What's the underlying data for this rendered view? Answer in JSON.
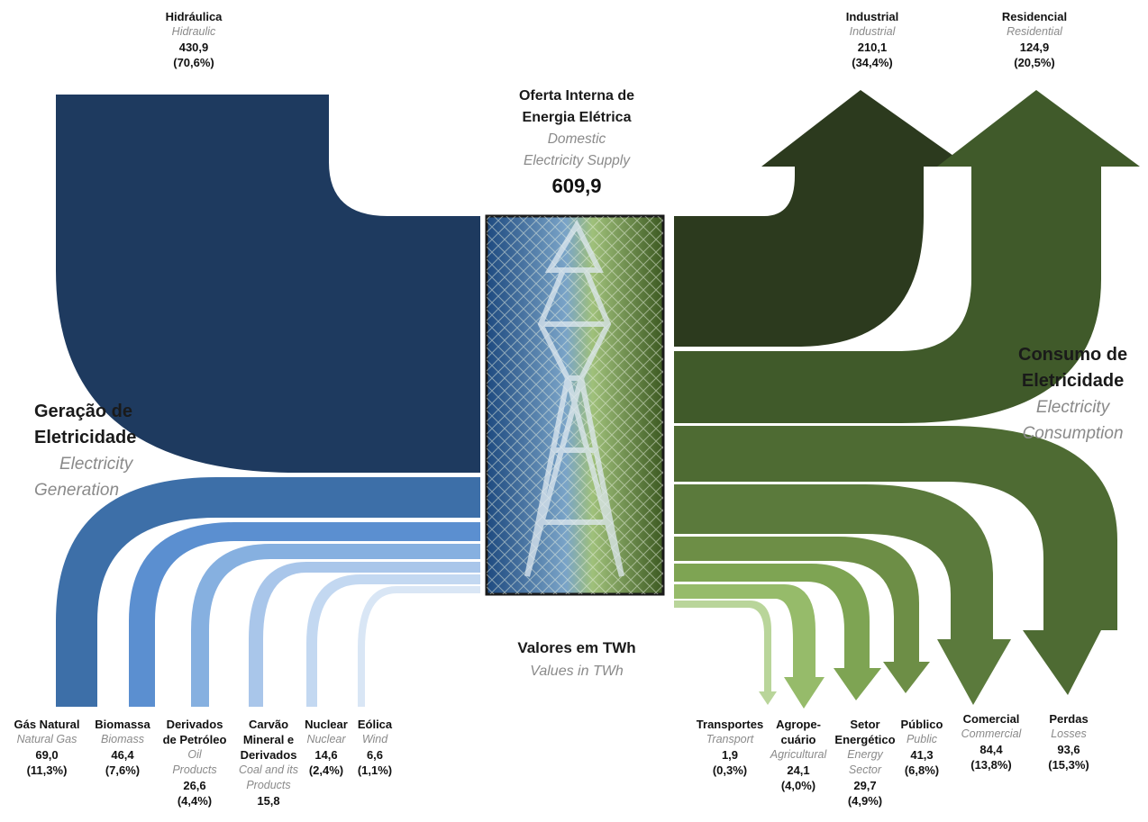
{
  "center": {
    "title_pt_1": "Oferta Interna de",
    "title_pt_2": "Energia Elétrica",
    "title_en_1": "Domestic",
    "title_en_2": "Electricity Supply",
    "total": "609,9"
  },
  "generation_heading": {
    "pt_1": "Geração de",
    "pt_2": "Eletricidade",
    "en_1": "Electricity",
    "en_2": "Generation"
  },
  "consumption_heading": {
    "pt_1": "Consumo de",
    "pt_2": "Eletricidade",
    "en_1": "Electricity",
    "en_2": "Consumption"
  },
  "units": {
    "pt": "Valores em TWh",
    "en": "Values in TWh"
  },
  "colors": {
    "hydro": "#1e3a5f",
    "gas": "#3d6fa8",
    "biomass": "#5b8fd0",
    "oil": "#86b0e0",
    "coal": "#a9c6ea",
    "nuclear": "#c3d8f1",
    "wind": "#d9e6f5",
    "industrial": "#2c3a1e",
    "residential": "#405a2a",
    "losses": "#4e6b33",
    "commercial": "#5b7a3c",
    "public": "#6d8e46",
    "energy_sector": "#7ea453",
    "agricultural": "#96bb6a",
    "transport": "#b9d59a"
  },
  "chart_data": {
    "type": "sankey",
    "unit": "TWh",
    "center_node": "Oferta Interna de Energia Elétrica / Domestic Electricity Supply",
    "total": 609.9,
    "sources": [
      {
        "pt": "Hidráulica",
        "en": "Hidraulic",
        "value": 430.9,
        "value_text": "430,9",
        "share_text": "(70,6%)"
      },
      {
        "pt": "Gás Natural",
        "en": "Natural Gas",
        "value": 69.0,
        "value_text": "69,0",
        "share_text": "(11,3%)"
      },
      {
        "pt": "Biomassa",
        "en": "Biomass",
        "value": 46.4,
        "value_text": "46,4",
        "share_text": "(7,6%)"
      },
      {
        "pt": "Derivados de Petróleo",
        "en": "Oil Products",
        "value": 26.6,
        "value_text": "26,6",
        "share_text": "(4,4%)"
      },
      {
        "pt": "Carvão Mineral e Derivados",
        "en": "Coal and its Products",
        "value": 15.8,
        "value_text": "15,8",
        "share_text": ""
      },
      {
        "pt": "Nuclear",
        "en": "Nuclear",
        "value": 14.6,
        "value_text": "14,6",
        "share_text": "(2,4%)"
      },
      {
        "pt": "Eólica",
        "en": "Wind",
        "value": 6.6,
        "value_text": "6,6",
        "share_text": "(1,1%)"
      }
    ],
    "uses": [
      {
        "pt": "Industrial",
        "en": "Industrial",
        "value": 210.1,
        "value_text": "210,1",
        "share_text": "(34,4%)"
      },
      {
        "pt": "Residencial",
        "en": "Residential",
        "value": 124.9,
        "value_text": "124,9",
        "share_text": "(20,5%)"
      },
      {
        "pt": "Perdas",
        "en": "Losses",
        "value": 93.6,
        "value_text": "93,6",
        "share_text": "(15,3%)"
      },
      {
        "pt": "Comercial",
        "en": "Commercial",
        "value": 84.4,
        "value_text": "84,4",
        "share_text": "(13,8%)"
      },
      {
        "pt": "Público",
        "en": "Public",
        "value": 41.3,
        "value_text": "41,3",
        "share_text": "(6,8%)"
      },
      {
        "pt": "Setor Energético",
        "en": "Energy Sector",
        "value": 29.7,
        "value_text": "29,7",
        "share_text": "(4,9%)"
      },
      {
        "pt": "Agropecuário",
        "en": "Agricultural",
        "value": 24.1,
        "value_text": "24,1",
        "share_text": "(4,0%)"
      },
      {
        "pt": "Transportes",
        "en": "Transport",
        "value": 1.9,
        "value_text": "1,9",
        "share_text": "(0,3%)"
      }
    ]
  },
  "labels": {
    "hydro": {
      "pt": "Hidráulica",
      "en": "Hidraulic",
      "val": "430,9",
      "pct": "(70,6%)"
    },
    "industrial": {
      "pt": "Industrial",
      "en": "Industrial",
      "val": "210,1",
      "pct": "(34,4%)"
    },
    "residential": {
      "pt": "Residencial",
      "en": "Residential",
      "val": "124,9",
      "pct": "(20,5%)"
    },
    "gas": {
      "pt": "Gás Natural",
      "en": "Natural Gas",
      "val": "69,0",
      "pct": "(11,3%)"
    },
    "biomass": {
      "pt": "Biomassa",
      "en": "Biomass",
      "val": "46,4",
      "pct": "(7,6%)"
    },
    "oil": {
      "pt_1": "Derivados",
      "pt_2": "de Petróleo",
      "en_1": "Oil",
      "en_2": "Products",
      "val": "26,6",
      "pct": "(4,4%)"
    },
    "coal": {
      "pt_1": "Carvão",
      "pt_2": "Mineral e",
      "pt_3": "Derivados",
      "en_1": "Coal and its",
      "en_2": "Products",
      "val": "15,8"
    },
    "nuclear": {
      "pt": "Nuclear",
      "en": "Nuclear",
      "val": "14,6",
      "pct": "(2,4%)"
    },
    "wind": {
      "pt": "Eólica",
      "en": "Wind",
      "val": "6,6",
      "pct": "(1,1%)"
    },
    "transport": {
      "pt": "Transportes",
      "en": "Transport",
      "val": "1,9",
      "pct": "(0,3%)"
    },
    "agricultural": {
      "pt_1": "Agrope-",
      "pt_2": "cuário",
      "en": "Agricultural",
      "val": "24,1",
      "pct": "(4,0%)"
    },
    "energy_sector": {
      "pt_1": "Setor",
      "pt_2": "Energético",
      "en_1": "Energy",
      "en_2": "Sector",
      "val": "29,7",
      "pct": "(4,9%)"
    },
    "public": {
      "pt": "Público",
      "en": "Public",
      "val": "41,3",
      "pct": "(6,8%)"
    },
    "commercial": {
      "pt": "Comercial",
      "en": "Commercial",
      "val": "84,4",
      "pct": "(13,8%)"
    },
    "losses": {
      "pt": "Perdas",
      "en": "Losses",
      "val": "93,6",
      "pct": "(15,3%)"
    }
  }
}
